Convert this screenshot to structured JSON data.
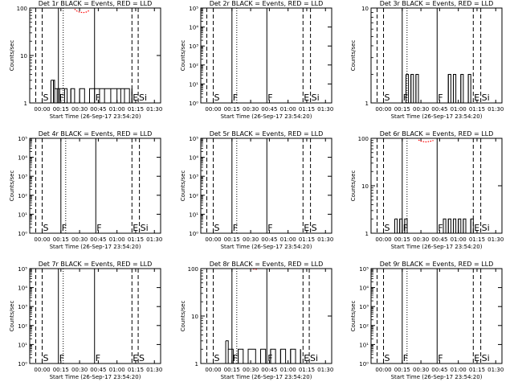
{
  "xlabel": "Start Time (26-Sep-17 23:54:20)",
  "ylabel": "Counts/sec",
  "colors": {
    "events": "#000000",
    "lld": "#ff0000",
    "axes": "#000000"
  },
  "chart_data": [
    {
      "type": "line",
      "title": "Det 1r BLACK = Events, RED = LLD",
      "yscale": "log",
      "ylim": [
        1,
        100
      ],
      "ytick_labels": [
        "1",
        "10",
        "100"
      ],
      "x_tick_labels": [
        "00:00",
        "00:15",
        "00:30",
        "00:45",
        "01:00",
        "01:15",
        "01:30"
      ],
      "markers": [
        {
          "label": "S",
          "x": "00:00"
        },
        {
          "label": "F",
          "x": "00:13"
        },
        {
          "label": "F",
          "x": "00:42"
        },
        {
          "label": "E",
          "x": "01:12"
        },
        {
          "label": "Si",
          "x": "01:17"
        }
      ],
      "events": [
        [
          7,
          3
        ],
        [
          9,
          3
        ],
        [
          10,
          2
        ],
        [
          12,
          2
        ],
        [
          14,
          2
        ],
        [
          18,
          2
        ],
        [
          20,
          1
        ],
        [
          23,
          2
        ],
        [
          26,
          1
        ],
        [
          30,
          2
        ],
        [
          34,
          1
        ],
        [
          38,
          2
        ],
        [
          42,
          2
        ],
        [
          46,
          2
        ],
        [
          50,
          2
        ],
        [
          55,
          2
        ],
        [
          60,
          2
        ],
        [
          63,
          2
        ],
        [
          66,
          2
        ],
        [
          70,
          1
        ],
        [
          72,
          2
        ]
      ],
      "lld": [
        [
          26,
          95
        ],
        [
          28,
          86
        ],
        [
          30,
          82
        ],
        [
          33,
          80
        ],
        [
          36,
          83
        ],
        [
          38,
          90
        ]
      ]
    },
    {
      "type": "line",
      "title": "Det 2r BLACK = Events, RED = LLD",
      "yscale": "log",
      "ylim": [
        1,
        100000
      ],
      "ytick_labels": [
        "10⁰",
        "10¹",
        "10²",
        "10³",
        "10⁴",
        "10⁵"
      ],
      "x_tick_labels": [
        "00:00",
        "00:15",
        "00:30",
        "00:45",
        "01:00",
        "01:15",
        "01:30"
      ],
      "markers": [
        {
          "label": "S",
          "x": "00:00"
        },
        {
          "label": "F",
          "x": "00:15"
        },
        {
          "label": "F",
          "x": "00:43"
        },
        {
          "label": "E",
          "x": "01:12"
        },
        {
          "label": "Si",
          "x": "01:18"
        }
      ],
      "events": [],
      "lld": []
    },
    {
      "type": "line",
      "title": "Det 3r BLACK = Events, RED = LLD",
      "yscale": "log",
      "ylim": [
        1,
        10
      ],
      "ytick_labels": [
        "1",
        "10"
      ],
      "x_tick_labels": [
        "00:00",
        "00:15",
        "00:30",
        "00:45",
        "01:00",
        "01:15",
        "01:30"
      ],
      "markers": [
        {
          "label": "S",
          "x": "00:00"
        },
        {
          "label": "F",
          "x": "00:15"
        },
        {
          "label": "F",
          "x": "00:43"
        },
        {
          "label": "E",
          "x": "01:12"
        },
        {
          "label": "Si",
          "x": "01:18"
        }
      ],
      "events": [
        [
          18,
          2
        ],
        [
          20,
          1
        ],
        [
          22,
          2
        ],
        [
          24,
          1
        ],
        [
          26,
          2
        ],
        [
          28,
          1
        ],
        [
          52,
          2
        ],
        [
          54,
          1
        ],
        [
          56,
          2
        ],
        [
          58,
          1
        ],
        [
          62,
          2
        ],
        [
          64,
          1
        ],
        [
          68,
          2
        ],
        [
          70,
          1
        ]
      ],
      "lld": []
    },
    {
      "type": "line",
      "title": "Det 4r BLACK = Events, RED = LLD",
      "yscale": "log",
      "ylim": [
        1,
        100000
      ],
      "ytick_labels": [
        "10⁰",
        "10¹",
        "10²",
        "10³",
        "10⁴",
        "10⁵"
      ],
      "x_tick_labels": [
        "00:00",
        "00:15",
        "00:30",
        "00:45",
        "01:00",
        "01:15",
        "01:30"
      ],
      "markers": [
        {
          "label": "S",
          "x": "00:00"
        },
        {
          "label": "F",
          "x": "00:15"
        },
        {
          "label": "F",
          "x": "00:43"
        },
        {
          "label": "E",
          "x": "01:12"
        },
        {
          "label": "Si",
          "x": "01:18"
        }
      ],
      "events": [],
      "lld": []
    },
    {
      "type": "line",
      "title": "Det 5r BLACK = Events, RED = LLD",
      "yscale": "log",
      "ylim": [
        1,
        100000
      ],
      "ytick_labels": [
        "10⁰",
        "10¹",
        "10²",
        "10³",
        "10⁴",
        "10⁵"
      ],
      "x_tick_labels": [
        "00:00",
        "00:15",
        "00:30",
        "00:45",
        "01:00",
        "01:15",
        "01:30"
      ],
      "markers": [
        {
          "label": "S",
          "x": "00:00"
        },
        {
          "label": "F",
          "x": "00:15"
        },
        {
          "label": "F",
          "x": "00:43"
        },
        {
          "label": "E",
          "x": "01:12"
        },
        {
          "label": "S",
          "x": "01:18"
        }
      ],
      "events": [],
      "lld": []
    },
    {
      "type": "line",
      "title": "Det 6r BLACK = Events, RED = LLD",
      "yscale": "log",
      "ylim": [
        1,
        100
      ],
      "ytick_labels": [
        "1",
        "10",
        "100"
      ],
      "x_tick_labels": [
        "00:00",
        "00:15",
        "00:30",
        "00:45",
        "01:00",
        "01:15",
        "01:30"
      ],
      "markers": [
        {
          "label": "S",
          "x": "00:00"
        },
        {
          "label": "F",
          "x": "00:15"
        },
        {
          "label": "F",
          "x": "00:43"
        },
        {
          "label": "E",
          "x": "01:12"
        },
        {
          "label": "Si",
          "x": "01:18"
        }
      ],
      "events": [
        [
          9,
          2
        ],
        [
          11,
          1
        ],
        [
          13,
          2
        ],
        [
          15,
          1
        ],
        [
          17,
          2
        ],
        [
          19,
          1
        ],
        [
          48,
          2
        ],
        [
          50,
          1
        ],
        [
          52,
          2
        ],
        [
          54,
          1
        ],
        [
          56,
          2
        ],
        [
          58,
          1
        ],
        [
          60,
          2
        ],
        [
          62,
          1
        ],
        [
          64,
          2
        ],
        [
          66,
          1
        ],
        [
          70,
          2
        ],
        [
          72,
          1
        ]
      ],
      "lld": [
        [
          28,
          92
        ],
        [
          31,
          86
        ],
        [
          34,
          84
        ],
        [
          37,
          86
        ],
        [
          40,
          90
        ]
      ]
    },
    {
      "type": "line",
      "title": "Det 7r BLACK = Events, RED = LLD",
      "yscale": "log",
      "ylim": [
        1,
        100000
      ],
      "ytick_labels": [
        "10⁰",
        "10¹",
        "10²",
        "10³",
        "10⁴",
        "10⁵"
      ],
      "x_tick_labels": [
        "00:00",
        "00:15",
        "00:30",
        "00:45",
        "01:00",
        "01:15",
        "01:30"
      ],
      "markers": [
        {
          "label": "S",
          "x": "00:00"
        },
        {
          "label": "F",
          "x": "00:13"
        },
        {
          "label": "F",
          "x": "00:42"
        },
        {
          "label": "E",
          "x": "01:12"
        },
        {
          "label": "S",
          "x": "01:17"
        }
      ],
      "events": [],
      "lld": []
    },
    {
      "type": "line",
      "title": "Det 8r BLACK = Events, RED = LLD",
      "yscale": "log",
      "ylim": [
        1,
        100
      ],
      "ytick_labels": [
        "1",
        "10",
        "100"
      ],
      "x_tick_labels": [
        "00:00",
        "00:15",
        "00:30",
        "00:45",
        "01:00",
        "01:15",
        "01:30"
      ],
      "markers": [
        {
          "label": "S",
          "x": "00:00"
        },
        {
          "label": "F",
          "x": "00:15"
        },
        {
          "label": "F",
          "x": "00:43"
        },
        {
          "label": "E",
          "x": "01:12"
        },
        {
          "label": "Si",
          "x": "01:17"
        }
      ],
      "events": [
        [
          10,
          3
        ],
        [
          12,
          2
        ],
        [
          16,
          1
        ],
        [
          20,
          2
        ],
        [
          24,
          1
        ],
        [
          28,
          2
        ],
        [
          34,
          1
        ],
        [
          38,
          2
        ],
        [
          42,
          1
        ],
        [
          46,
          2
        ],
        [
          50,
          1
        ],
        [
          54,
          2
        ],
        [
          58,
          1
        ],
        [
          62,
          2
        ],
        [
          66,
          1
        ],
        [
          70,
          2
        ]
      ],
      "lld": [
        [
          32,
          98
        ],
        [
          35,
          96
        ]
      ]
    },
    {
      "type": "line",
      "title": "Det 9r BLACK = Events, RED = LLD",
      "yscale": "log",
      "ylim": [
        1,
        100000
      ],
      "ytick_labels": [
        "10⁰",
        "10¹",
        "10²",
        "10³",
        "10⁴",
        "10⁵"
      ],
      "x_tick_labels": [
        "00:00",
        "00:15",
        "00:30",
        "00:45",
        "01:00",
        "01:15",
        "01:30"
      ],
      "markers": [
        {
          "label": "S",
          "x": "00:00"
        },
        {
          "label": "F",
          "x": "00:15"
        },
        {
          "label": "F",
          "x": "00:43"
        },
        {
          "label": "E",
          "x": "01:12"
        },
        {
          "label": "Si",
          "x": "01:18"
        }
      ],
      "events": [],
      "lld": []
    }
  ]
}
